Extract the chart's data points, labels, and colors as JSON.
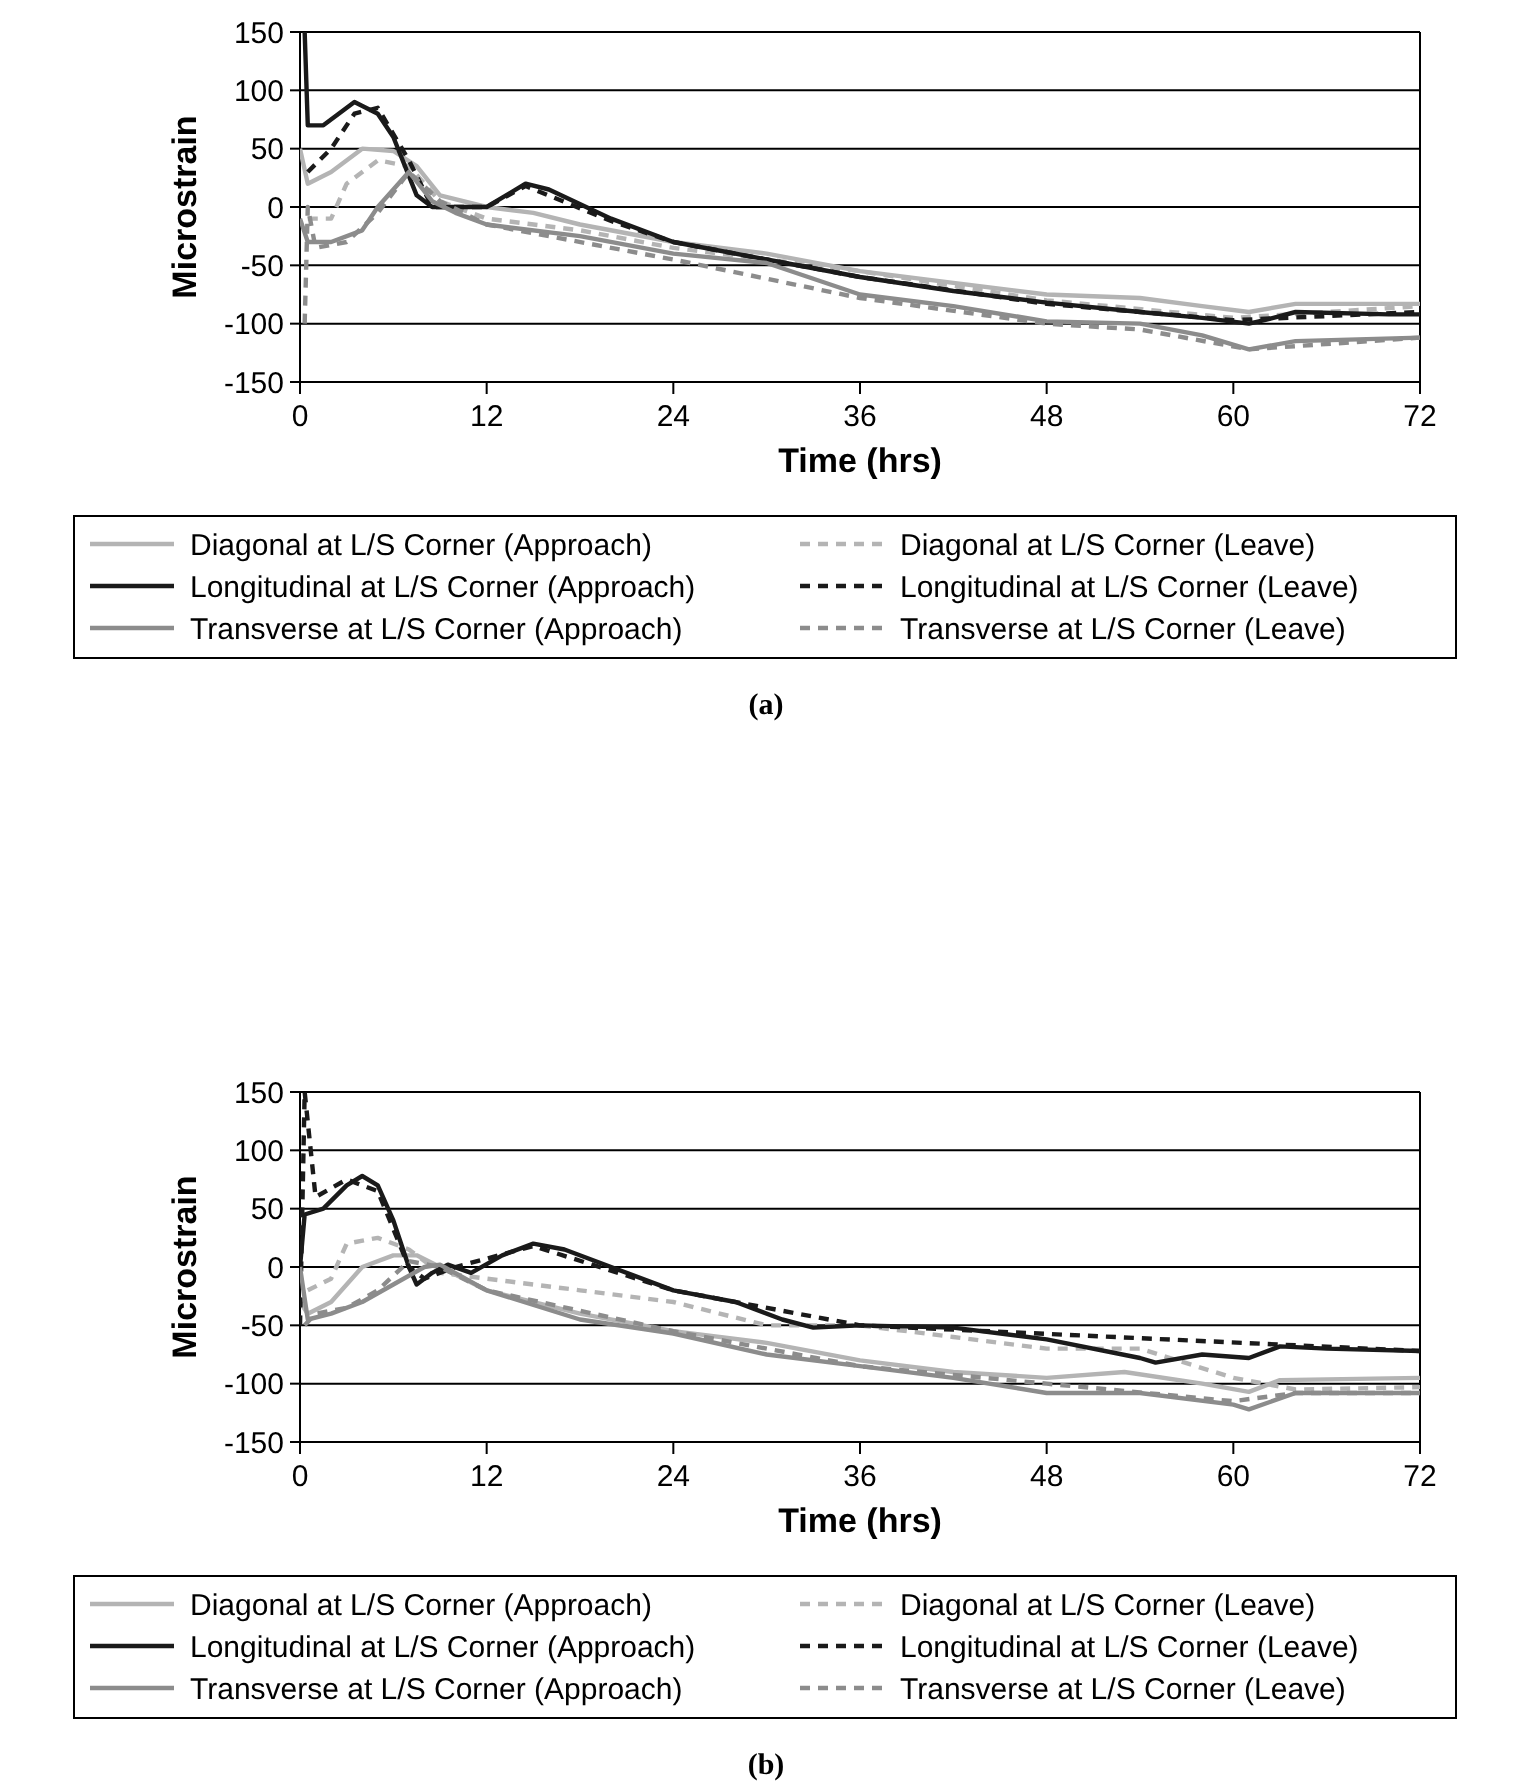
{
  "chart_data": [
    {
      "type": "line",
      "xlabel": "Time (hrs)",
      "ylabel": "Microstrain",
      "annotations": [
        "(a)"
      ],
      "xlim": [
        0,
        72
      ],
      "xticks": [
        0,
        12,
        24,
        36,
        48,
        60,
        72
      ],
      "ylim": [
        -150,
        150
      ],
      "yticks": [
        -150,
        -100,
        -50,
        0,
        50,
        100,
        150
      ],
      "grid": "y",
      "legend": "bottom",
      "series": [
        {
          "name": "Diagonal at L/S Corner (Approach)",
          "color": "#b4b4b4",
          "line_style": "solid",
          "x": [
            0,
            0.5,
            2,
            4,
            6,
            7.5,
            9,
            12,
            15,
            18,
            24,
            30,
            36,
            42,
            48,
            54,
            58,
            61,
            64,
            72
          ],
          "values": [
            50,
            20,
            30,
            50,
            48,
            35,
            10,
            0,
            -5,
            -15,
            -30,
            -40,
            -55,
            -65,
            -75,
            -78,
            -85,
            -90,
            -83,
            -83
          ]
        },
        {
          "name": "Diagonal at L/S Corner (Leave)",
          "color": "#b4b4b4",
          "line_style": "dashed",
          "x": [
            0.5,
            2,
            3,
            5,
            7,
            9,
            12,
            18,
            24,
            36,
            48,
            60,
            72
          ],
          "values": [
            -10,
            -10,
            20,
            40,
            35,
            5,
            -10,
            -20,
            -35,
            -55,
            -80,
            -95,
            -85
          ]
        },
        {
          "name": "Longitudinal at L/S Corner (Approach)",
          "color": "#1a1a1a",
          "line_style": "solid",
          "x": [
            0.3,
            0.5,
            1.5,
            3.5,
            5,
            6,
            7.5,
            8.5,
            10,
            12,
            14.5,
            16,
            20,
            24,
            30,
            36,
            42,
            48,
            54,
            58,
            61,
            62,
            64,
            70,
            72
          ],
          "values": [
            150,
            70,
            70,
            90,
            80,
            60,
            10,
            0,
            0,
            0,
            20,
            15,
            -10,
            -30,
            -45,
            -60,
            -72,
            -82,
            -90,
            -95,
            -100,
            -97,
            -90,
            -92,
            -92
          ]
        },
        {
          "name": "Longitudinal at L/S Corner (Leave)",
          "color": "#1a1a1a",
          "line_style": "dashed",
          "x": [
            0.5,
            2,
            3.5,
            5,
            7,
            8.5,
            12,
            14.5,
            20,
            24,
            36,
            48,
            60,
            72
          ],
          "values": [
            30,
            50,
            80,
            85,
            40,
            0,
            0,
            18,
            -12,
            -30,
            -60,
            -83,
            -97,
            -90
          ]
        },
        {
          "name": "Transverse at L/S Corner (Approach)",
          "color": "#8c8c8c",
          "line_style": "solid",
          "x": [
            0,
            0.5,
            2,
            4,
            5,
            7,
            8.5,
            10,
            12,
            18,
            24,
            30,
            36,
            42,
            48,
            54,
            58,
            61,
            64,
            72
          ],
          "values": [
            -10,
            -30,
            -30,
            -20,
            0,
            30,
            5,
            -5,
            -15,
            -25,
            -40,
            -48,
            -75,
            -85,
            -98,
            -100,
            -110,
            -122,
            -115,
            -112
          ]
        },
        {
          "name": "Transverse at L/S Corner (Leave)",
          "color": "#8c8c8c",
          "line_style": "dashed",
          "x": [
            0.3,
            0.5,
            1,
            3,
            5,
            7,
            9,
            12,
            24,
            36,
            48,
            54,
            61,
            72
          ],
          "values": [
            -100,
            0,
            -35,
            -30,
            -5,
            30,
            5,
            -15,
            -45,
            -78,
            -100,
            -105,
            -122,
            -112
          ]
        }
      ]
    },
    {
      "type": "line",
      "xlabel": "Time (hrs)",
      "ylabel": "Microstrain",
      "annotations": [
        "(b)"
      ],
      "xlim": [
        0,
        72
      ],
      "xticks": [
        0,
        12,
        24,
        36,
        48,
        60,
        72
      ],
      "ylim": [
        -150,
        150
      ],
      "yticks": [
        -150,
        -100,
        -50,
        0,
        50,
        100,
        150
      ],
      "grid": "y",
      "legend": "bottom",
      "series": [
        {
          "name": "Diagonal at L/S Corner (Approach)",
          "color": "#b4b4b4",
          "line_style": "solid",
          "x": [
            0,
            0.5,
            2,
            4,
            6,
            7.5,
            9,
            12,
            18,
            24,
            30,
            36,
            42,
            48,
            53,
            58,
            61,
            63,
            72
          ],
          "values": [
            -30,
            -40,
            -30,
            0,
            10,
            10,
            0,
            -20,
            -40,
            -55,
            -65,
            -80,
            -90,
            -95,
            -90,
            -100,
            -107,
            -97,
            -95
          ]
        },
        {
          "name": "Diagonal at L/S Corner (Leave)",
          "color": "#b4b4b4",
          "line_style": "dashed",
          "x": [
            0.5,
            2,
            3,
            5,
            7,
            9,
            12,
            18,
            24,
            30,
            36,
            42,
            48,
            54,
            60,
            64,
            72
          ],
          "values": [
            -20,
            -10,
            20,
            25,
            15,
            -5,
            -10,
            -20,
            -30,
            -50,
            -50,
            -60,
            -70,
            -70,
            -95,
            -105,
            -103
          ]
        },
        {
          "name": "Longitudinal at L/S Corner (Approach)",
          "color": "#1a1a1a",
          "line_style": "solid",
          "x": [
            0,
            0.3,
            1.5,
            3,
            4,
            5,
            6,
            7,
            7.5,
            8.5,
            9.5,
            11,
            13,
            15,
            17,
            20,
            24,
            28,
            31,
            33,
            36,
            42,
            48,
            54,
            55,
            58,
            61,
            63,
            66,
            72
          ],
          "values": [
            0,
            45,
            50,
            70,
            78,
            70,
            40,
            0,
            -15,
            -5,
            2,
            -5,
            10,
            20,
            15,
            0,
            -20,
            -30,
            -45,
            -52,
            -50,
            -52,
            -62,
            -78,
            -82,
            -75,
            -78,
            -68,
            -70,
            -72
          ]
        },
        {
          "name": "Longitudinal at L/S Corner (Leave)",
          "color": "#1a1a1a",
          "line_style": "dashed",
          "x": [
            0,
            0.3,
            1,
            3,
            5,
            7,
            8,
            10,
            15,
            24,
            36,
            72
          ],
          "values": [
            -50,
            150,
            60,
            75,
            65,
            0,
            -10,
            0,
            18,
            -20,
            -50,
            -72
          ]
        },
        {
          "name": "Transverse at L/S Corner (Approach)",
          "color": "#8c8c8c",
          "line_style": "solid",
          "x": [
            0,
            0.5,
            2,
            4,
            6,
            8,
            9,
            12,
            18,
            24,
            30,
            36,
            42,
            48,
            54,
            60,
            61,
            64,
            72
          ],
          "values": [
            0,
            -45,
            -40,
            -30,
            -15,
            0,
            2,
            -20,
            -45,
            -57,
            -75,
            -85,
            -95,
            -108,
            -108,
            -118,
            -122,
            -108,
            -108
          ]
        },
        {
          "name": "Transverse at L/S Corner (Leave)",
          "color": "#8c8c8c",
          "line_style": "dashed",
          "x": [
            0.3,
            1,
            3,
            5,
            7,
            9,
            12,
            24,
            36,
            48,
            60,
            64,
            72
          ],
          "values": [
            -50,
            -40,
            -35,
            -20,
            5,
            0,
            -20,
            -55,
            -85,
            -100,
            -115,
            -108,
            -108
          ]
        }
      ]
    }
  ]
}
